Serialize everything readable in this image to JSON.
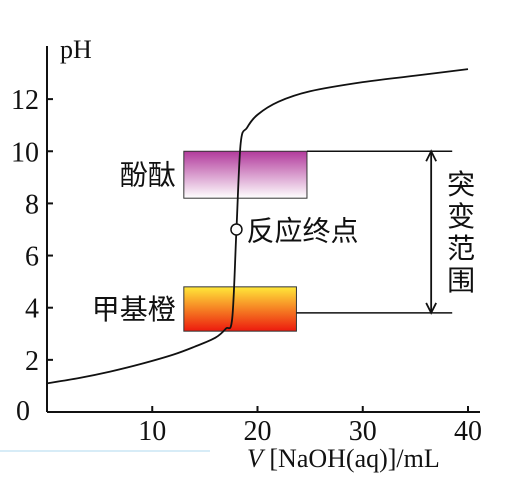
{
  "chart_data": {
    "type": "line",
    "title": "",
    "ylabel": "pH",
    "xlabel_var": "V",
    "xlabel_rest": "[NaOH(aq)]/mL",
    "xlim": [
      0,
      40
    ],
    "ylim": [
      0,
      13.5
    ],
    "x_ticks": [
      10,
      20,
      30,
      40
    ],
    "y_ticks": [
      2,
      4,
      6,
      8,
      10,
      12
    ],
    "origin_label": "0",
    "grid": false,
    "series": [
      {
        "x": [
          0,
          3,
          6,
          9,
          12,
          14,
          16,
          17,
          17.6,
          18,
          18.4,
          19,
          20,
          22,
          25,
          30,
          35,
          40
        ],
        "y": [
          1.1,
          1.3,
          1.55,
          1.85,
          2.2,
          2.5,
          2.85,
          3.2,
          3.6,
          7.0,
          10.3,
          10.9,
          11.4,
          11.9,
          12.3,
          12.65,
          12.9,
          13.15
        ]
      }
    ],
    "endpoint": {
      "x": 18,
      "y": 7,
      "label": "反应终点"
    },
    "indicators": [
      {
        "label": "酚酞",
        "ph_range": [
          8.2,
          10.0
        ],
        "x_range": [
          13,
          24.7
        ],
        "colors": [
          "#b23a9c",
          "#ffffff"
        ]
      },
      {
        "label": "甲基橙",
        "ph_range": [
          3.1,
          4.8
        ],
        "x_range": [
          13,
          23.7
        ],
        "colors": [
          "#ffe83a",
          "#ec1a0e"
        ]
      }
    ],
    "jump_range": {
      "ph_range": [
        3.8,
        10.0
      ],
      "x": 36.5,
      "label": "突变范围",
      "line_x_end": 38.5
    }
  }
}
